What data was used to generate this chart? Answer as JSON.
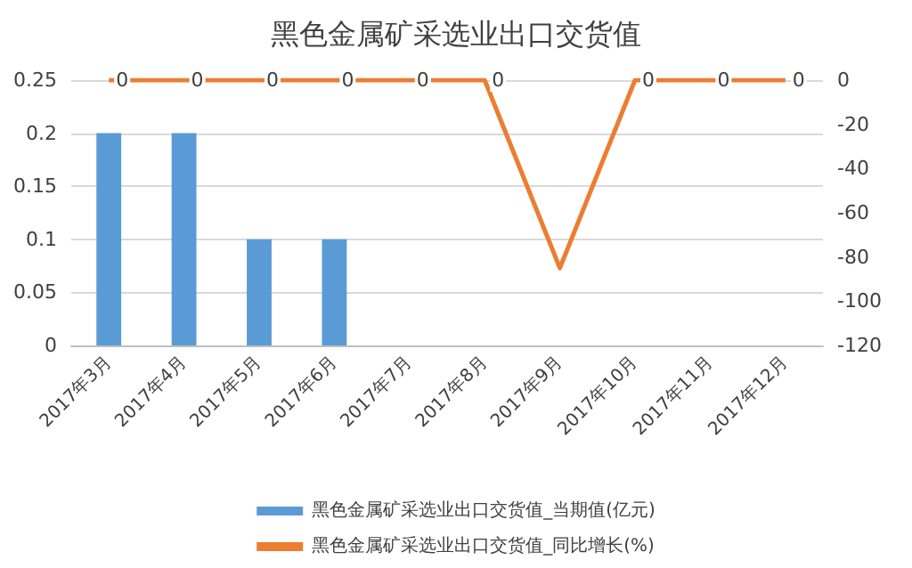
{
  "chart_data": {
    "type": "bar",
    "title": "黑色金属矿采选业出口交货值",
    "categories": [
      "2017年3月",
      "2017年4月",
      "2017年5月",
      "2017年6月",
      "2017年7月",
      "2017年8月",
      "2017年9月",
      "2017年10月",
      "2017年11月",
      "2017年12月"
    ],
    "series": [
      {
        "name": "黑色金属矿采选业出口交货值_当期值(亿元)",
        "color": "#5b9bd5",
        "values": [
          0.2,
          0.2,
          0.1,
          0.1,
          0,
          0,
          0,
          0,
          0,
          0
        ]
      },
      {
        "name": "黑色金属矿采选业出口交货值_同比增长(%)",
        "type": "line",
        "axis": "y2",
        "color": "#ed7d31",
        "values": [
          0,
          0,
          0,
          0,
          0,
          0,
          -85,
          0,
          0,
          0
        ],
        "value_labels": [
          "0",
          "0",
          "0",
          "0",
          "0",
          "0",
          null,
          "0",
          "0",
          "0"
        ]
      }
    ],
    "ylim": [
      0,
      0.25
    ],
    "yticks": [
      0,
      0.05,
      0.1,
      0.15,
      0.2,
      0.25
    ],
    "y2lim": [
      -120,
      0
    ],
    "y2ticks": [
      -120,
      -100,
      -80,
      -60,
      -40,
      -20,
      0
    ],
    "grid": "y",
    "legend": "bottom",
    "marker": "none"
  }
}
